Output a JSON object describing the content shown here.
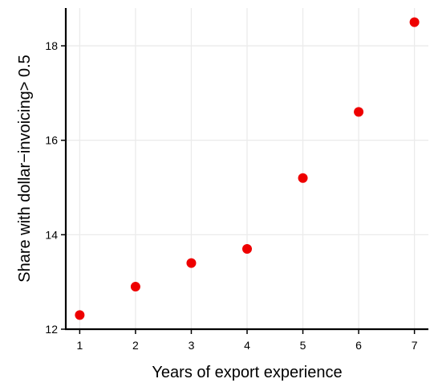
{
  "chart_data": {
    "type": "scatter",
    "title": "",
    "xlabel": "Years of export experience",
    "ylabel": "Share with dollar−invoicing> 0.5",
    "x": [
      1,
      2,
      3,
      4,
      5,
      6,
      7
    ],
    "series": [
      {
        "values": [
          12.3,
          12.9,
          13.4,
          13.7,
          15.2,
          16.6,
          18.5
        ]
      }
    ],
    "xlim": [
      0.75,
      7.25
    ],
    "ylim": [
      12,
      18.8
    ],
    "xticks": [
      1,
      2,
      3,
      4,
      5,
      6,
      7
    ],
    "yticks": [
      12,
      14,
      16,
      18
    ],
    "grid": true,
    "legend": "none",
    "colors": {
      "point": "#ee0000",
      "grid": "#ebebeb",
      "axis": "#000000",
      "background": "#ffffff"
    }
  }
}
